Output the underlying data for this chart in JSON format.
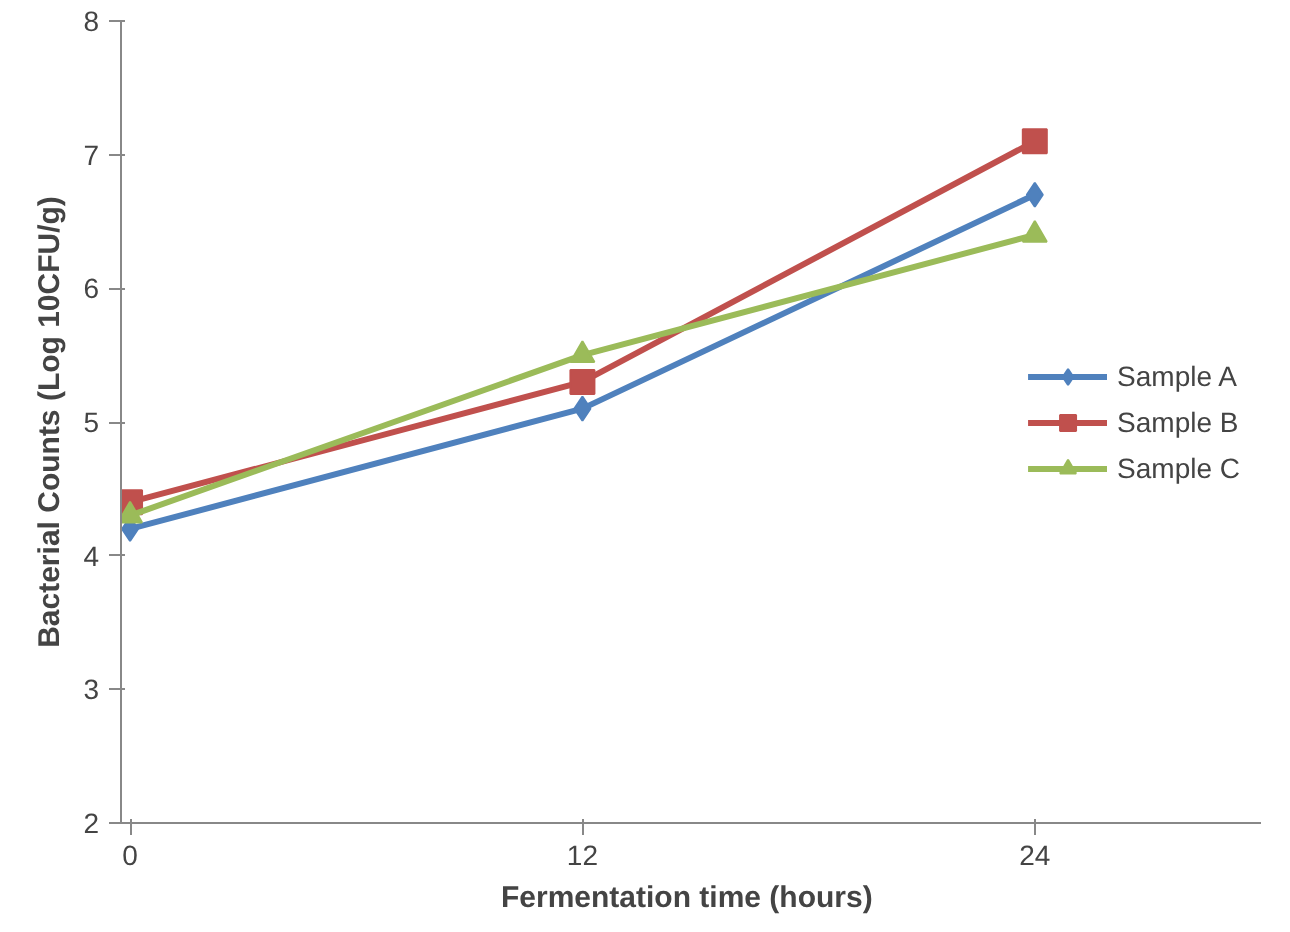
{
  "chart_data": {
    "type": "line",
    "xlabel": "Fermentation  time (hours)",
    "ylabel": "Bacterial Counts (Log 10CFU/g)",
    "categories": [
      "0",
      "12",
      "24"
    ],
    "ylim": [
      2,
      8
    ],
    "yticks": [
      2,
      3,
      4,
      5,
      6,
      7,
      8
    ],
    "grid": false,
    "legend": "right",
    "series": [
      {
        "name": "Sample A",
        "color": "#4f81bd",
        "marker": "diamond",
        "values": [
          4.2,
          5.1,
          6.7
        ]
      },
      {
        "name": "Sample B",
        "color": "#c0504d",
        "marker": "square",
        "values": [
          4.4,
          5.3,
          7.1
        ]
      },
      {
        "name": "Sample C",
        "color": "#9bbb59",
        "marker": "triangle",
        "values": [
          4.3,
          5.5,
          6.4
        ]
      }
    ]
  }
}
